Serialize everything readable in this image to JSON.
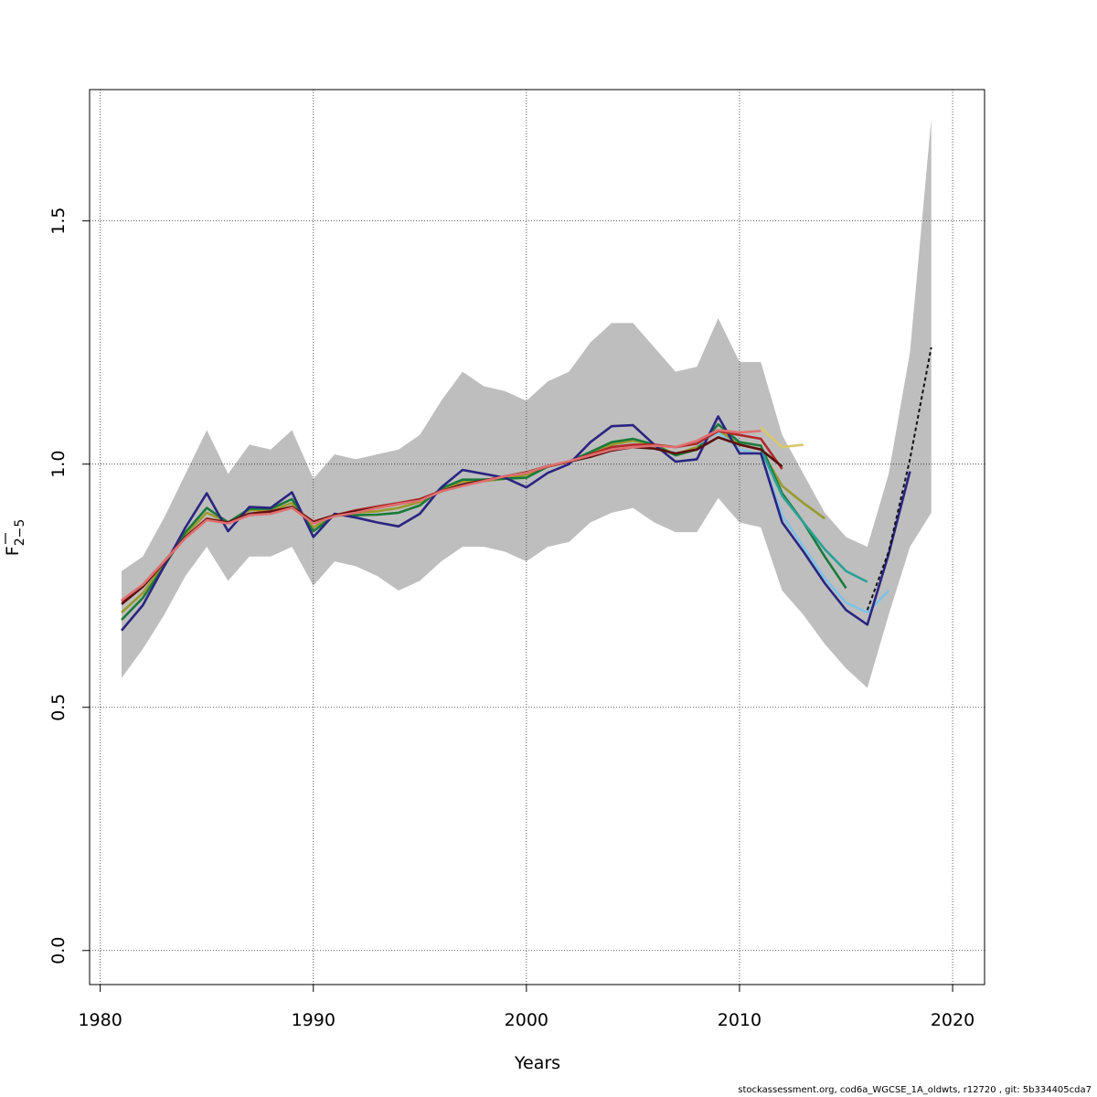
{
  "chart_data": {
    "type": "line",
    "title": "",
    "xlabel": "Years",
    "ylabel_main": "F",
    "ylabel_sub": "2−5",
    "xlim": [
      1979.5,
      2021.5
    ],
    "ylim": [
      -0.07,
      1.77
    ],
    "xticks": [
      1980,
      1990,
      2000,
      2010,
      2020
    ],
    "yticks": [
      0.0,
      0.5,
      1.0,
      1.5
    ],
    "ytick_labels": [
      "0.0",
      "0.5",
      "1.0",
      "1.5"
    ],
    "grid": true,
    "band_color": "#bebebe",
    "band": {
      "x": [
        1981,
        1982,
        1983,
        1984,
        1985,
        1986,
        1987,
        1988,
        1989,
        1990,
        1991,
        1992,
        1993,
        1994,
        1995,
        1996,
        1997,
        1998,
        1999,
        2000,
        2001,
        2002,
        2003,
        2004,
        2005,
        2006,
        2007,
        2008,
        2009,
        2010,
        2011,
        2012,
        2013,
        2014,
        2015,
        2016,
        2017,
        2018,
        2019
      ],
      "lower": [
        0.56,
        0.62,
        0.69,
        0.77,
        0.83,
        0.76,
        0.81,
        0.81,
        0.83,
        0.75,
        0.8,
        0.79,
        0.77,
        0.74,
        0.76,
        0.8,
        0.83,
        0.83,
        0.82,
        0.8,
        0.83,
        0.84,
        0.88,
        0.9,
        0.91,
        0.88,
        0.86,
        0.86,
        0.93,
        0.88,
        0.87,
        0.74,
        0.69,
        0.63,
        0.58,
        0.54,
        0.69,
        0.83,
        0.9
      ],
      "upper": [
        0.78,
        0.81,
        0.89,
        0.98,
        1.07,
        0.98,
        1.04,
        1.03,
        1.07,
        0.97,
        1.02,
        1.01,
        1.02,
        1.03,
        1.06,
        1.13,
        1.19,
        1.16,
        1.15,
        1.13,
        1.17,
        1.19,
        1.25,
        1.29,
        1.29,
        1.24,
        1.19,
        1.2,
        1.3,
        1.21,
        1.21,
        1.06,
        0.98,
        0.9,
        0.85,
        0.83,
        0.98,
        1.23,
        1.71
      ]
    },
    "series": [
      {
        "color": "#d9c86a",
        "x": [
          2011,
          2012,
          2013
        ],
        "values": [
          1.075,
          1.035,
          1.04
        ]
      },
      {
        "color": "#9a9a2e",
        "x": [
          1981,
          1982,
          1983,
          1984,
          1985,
          1986,
          1987,
          1988,
          1989,
          1990,
          1991,
          1992,
          1993,
          1994,
          1995,
          1996,
          1997,
          1998,
          1999,
          2000,
          2001,
          2002,
          2003,
          2004,
          2005,
          2006,
          2007,
          2008,
          2009,
          2010,
          2011,
          2012,
          2013,
          2014
        ],
        "values": [
          0.695,
          0.735,
          0.795,
          0.855,
          0.9,
          0.88,
          0.905,
          0.905,
          0.92,
          0.87,
          0.895,
          0.9,
          0.903,
          0.91,
          0.922,
          0.945,
          0.965,
          0.965,
          0.97,
          0.978,
          0.995,
          1.005,
          1.022,
          1.04,
          1.048,
          1.04,
          1.02,
          1.035,
          1.07,
          1.04,
          1.03,
          0.955,
          0.92,
          0.888
        ]
      },
      {
        "color": "#1a7a3a",
        "x": [
          1981,
          1982,
          1983,
          1984,
          1985,
          1986,
          1987,
          1988,
          1989,
          1990,
          1991,
          1992,
          1993,
          1994,
          1995,
          1996,
          1997,
          1998,
          1999,
          2000,
          2001,
          2002,
          2003,
          2004,
          2005,
          2006,
          2007,
          2008,
          2009,
          2010,
          2011,
          2012,
          2013,
          2014,
          2015
        ],
        "values": [
          0.68,
          0.725,
          0.79,
          0.86,
          0.91,
          0.88,
          0.908,
          0.908,
          0.928,
          0.862,
          0.895,
          0.895,
          0.896,
          0.9,
          0.915,
          0.95,
          0.968,
          0.968,
          0.97,
          0.972,
          0.995,
          1.005,
          1.025,
          1.045,
          1.052,
          1.04,
          1.018,
          1.03,
          1.082,
          1.045,
          1.038,
          0.94,
          0.88,
          0.81,
          0.745
        ]
      },
      {
        "color": "#2aa198",
        "x": [
          2011,
          2012,
          2013,
          2014,
          2015,
          2016
        ],
        "values": [
          1.03,
          0.935,
          0.88,
          0.825,
          0.78,
          0.758
        ]
      },
      {
        "color": "#7ec3e6",
        "x": [
          2008,
          2009,
          2010,
          2011,
          2012,
          2013,
          2014,
          2015,
          2016,
          2017
        ],
        "values": [
          1.04,
          1.065,
          1.03,
          1.02,
          0.895,
          0.83,
          0.765,
          0.715,
          0.695,
          0.74
        ]
      },
      {
        "color": "#2b2481",
        "x": [
          1981,
          1982,
          1983,
          1984,
          1985,
          1986,
          1987,
          1988,
          1989,
          1990,
          1991,
          1992,
          1993,
          1994,
          1995,
          1996,
          1997,
          1998,
          1999,
          2000,
          2001,
          2002,
          2003,
          2004,
          2005,
          2006,
          2007,
          2008,
          2009,
          2010,
          2011,
          2012,
          2013,
          2014,
          2015,
          2016,
          2017,
          2018
        ],
        "values": [
          0.658,
          0.71,
          0.79,
          0.87,
          0.94,
          0.862,
          0.912,
          0.91,
          0.942,
          0.85,
          0.898,
          0.89,
          0.88,
          0.872,
          0.898,
          0.952,
          0.988,
          0.98,
          0.972,
          0.952,
          0.982,
          1.0,
          1.045,
          1.078,
          1.08,
          1.04,
          1.005,
          1.01,
          1.098,
          1.022,
          1.022,
          0.88,
          0.82,
          0.755,
          0.7,
          0.67,
          0.815,
          0.985
        ]
      },
      {
        "color": "#111111",
        "x": [
          2016,
          2017,
          2018,
          2019
        ],
        "values": [
          0.7,
          0.82,
          1.01,
          1.24
        ],
        "dashed": true
      },
      {
        "color": "#b02a2a",
        "x": [
          1981,
          1982,
          1983,
          1984,
          1985,
          1986,
          1987,
          1988,
          1989,
          1990,
          1991,
          1992,
          1993,
          1994,
          1995,
          1996,
          1997,
          1998,
          1999,
          2000,
          2001,
          2002,
          2003,
          2004,
          2005,
          2006,
          2007,
          2008,
          2009,
          2010,
          2011,
          2012
        ],
        "values": [
          0.718,
          0.752,
          0.8,
          0.85,
          0.888,
          0.88,
          0.898,
          0.903,
          0.912,
          0.882,
          0.895,
          0.905,
          0.913,
          0.92,
          0.928,
          0.945,
          0.958,
          0.966,
          0.975,
          0.982,
          0.995,
          1.005,
          1.02,
          1.035,
          1.04,
          1.04,
          1.035,
          1.042,
          1.068,
          1.06,
          1.052,
          0.99
        ]
      },
      {
        "color": "#5c0f0f",
        "x": [
          1981,
          1982,
          1983,
          1984,
          1985,
          1986,
          1987,
          1988,
          1989,
          1990,
          1991,
          1992,
          1993,
          1994,
          1995,
          1996,
          1997,
          1998,
          1999,
          2000,
          2001,
          2002,
          2003,
          2004,
          2005,
          2006,
          2007,
          2008,
          2009,
          2010,
          2011,
          2012
        ],
        "values": [
          0.712,
          0.748,
          0.798,
          0.85,
          0.886,
          0.88,
          0.898,
          0.902,
          0.912,
          0.88,
          0.895,
          0.903,
          0.91,
          0.918,
          0.926,
          0.944,
          0.958,
          0.966,
          0.975,
          0.983,
          0.996,
          1.005,
          1.015,
          1.028,
          1.035,
          1.032,
          1.022,
          1.03,
          1.055,
          1.04,
          1.03,
          0.995
        ]
      },
      {
        "color": "#e07070",
        "x": [
          1981,
          1982,
          1983,
          1984,
          1985,
          1986,
          1987,
          1988,
          1989,
          1990,
          1991,
          1992,
          1993,
          1994,
          1995,
          1996,
          1997,
          1998,
          1999,
          2000,
          2001,
          2002,
          2003,
          2004,
          2005,
          2006,
          2007,
          2008,
          2009,
          2010,
          2011
        ],
        "values": [
          0.72,
          0.752,
          0.8,
          0.848,
          0.885,
          0.878,
          0.895,
          0.898,
          0.91,
          0.878,
          0.893,
          0.9,
          0.91,
          0.918,
          0.925,
          0.944,
          0.955,
          0.965,
          0.975,
          0.982,
          0.996,
          1.006,
          1.018,
          1.03,
          1.035,
          1.038,
          1.035,
          1.048,
          1.07,
          1.065,
          1.068
        ]
      }
    ]
  },
  "footer": "stockassessment.org, cod6a_WGCSE_1A_oldwts, r12720 , git: 5b334405cda7"
}
